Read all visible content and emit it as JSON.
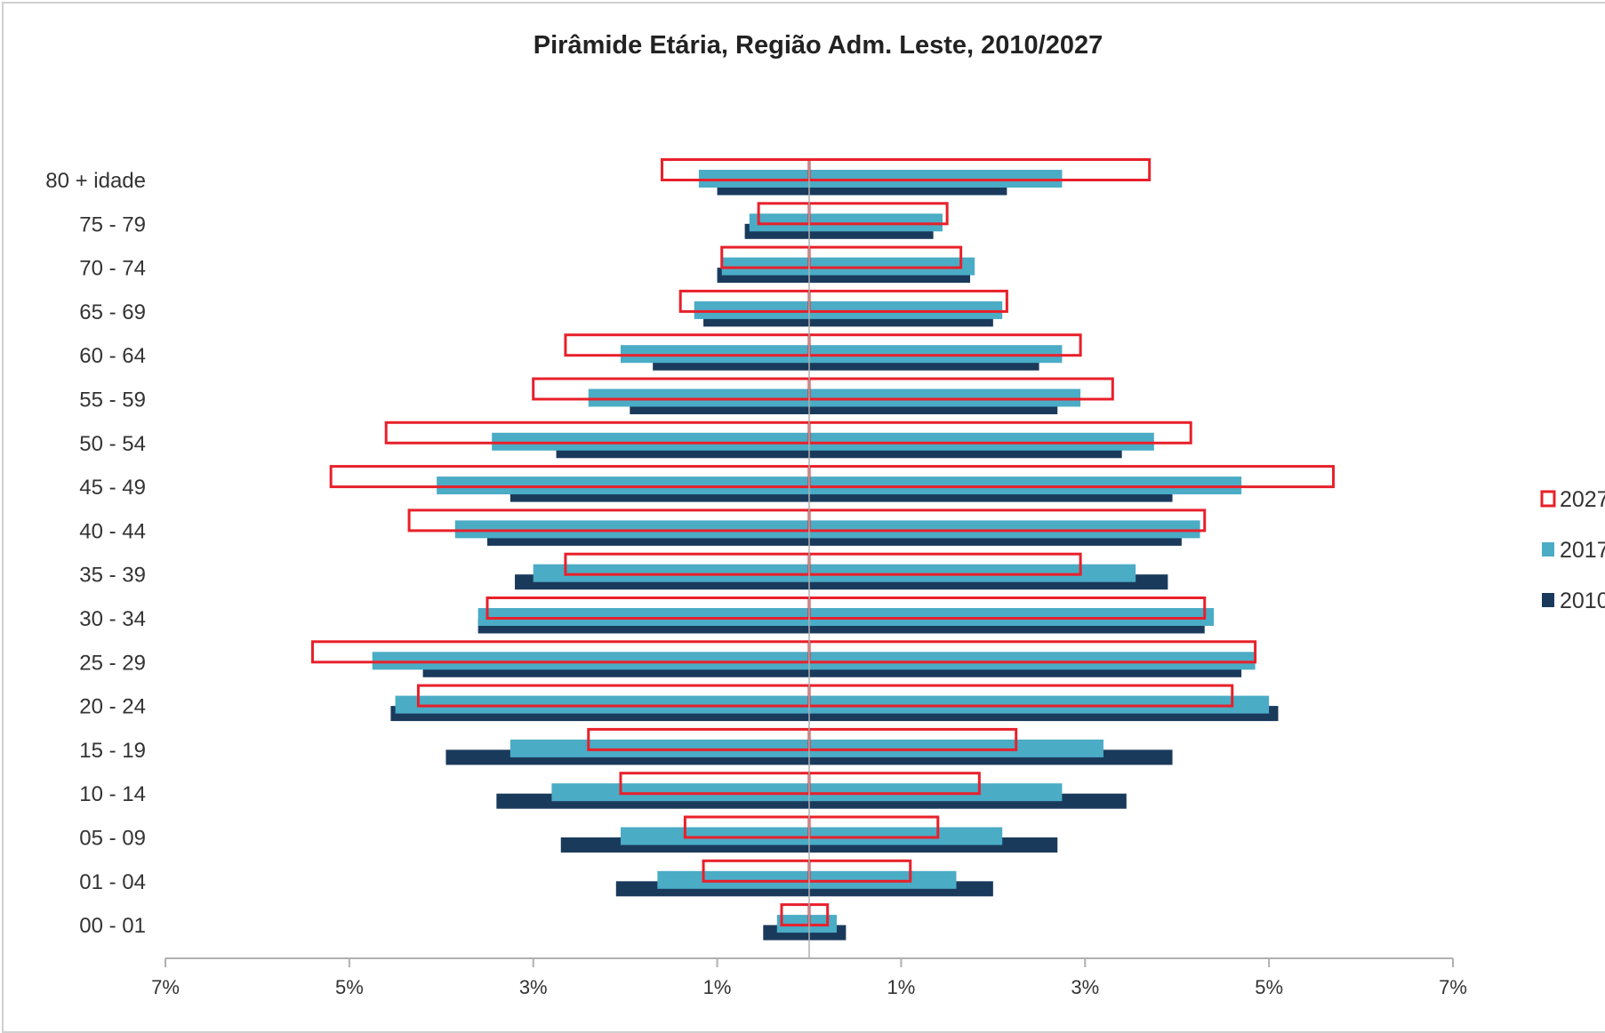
{
  "chart_data": {
    "type": "bar",
    "orientation": "horizontal-population-pyramid",
    "title": "Pirâmide Etária, Região Adm. Leste, 2010/2027",
    "categories": [
      "80 + idade",
      "75 - 79",
      "70 - 74",
      "65 - 69",
      "60 - 64",
      "55 - 59",
      "50 - 54",
      "45 - 49",
      "40 - 44",
      "35 - 39",
      "30 - 34",
      "25 - 29",
      "20 - 24",
      "15 - 19",
      "10 - 14",
      "05 - 09",
      "01 - 04",
      "00 - 01"
    ],
    "xticks": [
      "7%",
      "5%",
      "3%",
      "1%",
      "1%",
      "3%",
      "5%",
      "7%"
    ],
    "xlim": [
      -7,
      7
    ],
    "series": [
      {
        "name": "2010",
        "color": "#1a3a5c",
        "style": "filled",
        "left": [
          1.0,
          0.7,
          1.0,
          1.15,
          1.7,
          1.95,
          2.75,
          3.25,
          3.5,
          3.2,
          3.6,
          4.2,
          4.55,
          3.95,
          3.4,
          2.7,
          2.1,
          0.5
        ],
        "right": [
          2.15,
          1.35,
          1.75,
          2.0,
          2.5,
          2.7,
          3.4,
          3.95,
          4.05,
          3.9,
          4.3,
          4.7,
          5.1,
          3.95,
          3.45,
          2.7,
          2.0,
          0.4
        ]
      },
      {
        "name": "2017",
        "color": "#4bacc6",
        "style": "filled",
        "left": [
          1.2,
          0.65,
          0.95,
          1.25,
          2.05,
          2.4,
          3.45,
          4.05,
          3.85,
          3.0,
          3.6,
          4.75,
          4.5,
          3.25,
          2.8,
          2.05,
          1.65,
          0.35
        ],
        "right": [
          2.75,
          1.45,
          1.8,
          2.1,
          2.75,
          2.95,
          3.75,
          4.7,
          4.25,
          3.55,
          4.4,
          4.85,
          5.0,
          3.2,
          2.75,
          2.1,
          1.6,
          0.3
        ]
      },
      {
        "name": "2027",
        "color": "#e8202a",
        "style": "outline",
        "left": [
          1.6,
          0.55,
          0.95,
          1.4,
          2.65,
          3.0,
          4.6,
          5.2,
          4.35,
          2.65,
          3.5,
          5.4,
          4.25,
          2.4,
          2.05,
          1.35,
          1.15,
          0.3
        ],
        "right": [
          3.7,
          1.5,
          1.65,
          2.15,
          2.95,
          3.3,
          4.15,
          5.7,
          4.3,
          2.95,
          4.3,
          4.85,
          4.6,
          2.25,
          1.85,
          1.4,
          1.1,
          0.2
        ]
      }
    ],
    "legend_position": "right",
    "grid": false
  }
}
